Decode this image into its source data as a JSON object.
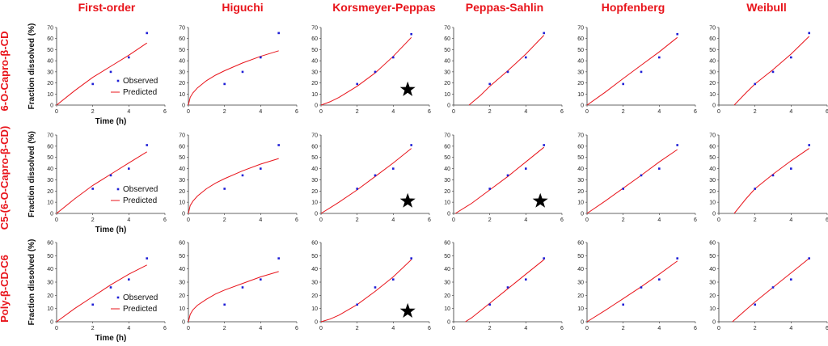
{
  "figure": {
    "column_titles": [
      "First-order",
      "Higuchi",
      "Korsmeyer-Peppas",
      "Peppas-Sahlin",
      "Hopfenberg",
      "Weibull"
    ],
    "row_titles": [
      "6-O-Capro-β-CD",
      "C5-(6-O-Capro-β-CD)",
      "Poly-β-CD-C6"
    ],
    "ylabel": "Fraction dissolved (%)",
    "xlabel": "Time (h)",
    "legend": {
      "observed": "Observed",
      "predicted": "Predicted"
    },
    "colors": {
      "title": "#e8141b",
      "observed": "#1f1fd6",
      "predicted": "#e8141b",
      "star": "#000000"
    }
  },
  "chart_data": [
    {
      "row": 0,
      "col": 0,
      "type": "scatter",
      "title": "First-order",
      "xlim": [
        0,
        6
      ],
      "ylim": [
        0,
        70
      ],
      "x_ticks": [
        0,
        2,
        4,
        6
      ],
      "y_ticks": [
        0,
        10,
        20,
        30,
        40,
        50,
        60,
        70
      ],
      "observed": {
        "x": [
          2,
          3,
          4,
          5
        ],
        "y": [
          19,
          30,
          43,
          65
        ]
      },
      "predicted": {
        "x": [
          0,
          1,
          2,
          3,
          4,
          5
        ],
        "y": [
          0,
          13,
          25,
          35,
          45,
          56
        ]
      },
      "legend": true,
      "ylabel": true,
      "xlabel": true,
      "star": false
    },
    {
      "row": 0,
      "col": 1,
      "type": "scatter",
      "title": "Higuchi",
      "xlim": [
        0,
        6
      ],
      "ylim": [
        0,
        70
      ],
      "x_ticks": [
        0,
        2,
        4,
        6
      ],
      "y_ticks": [
        0,
        10,
        20,
        30,
        40,
        50,
        60,
        70
      ],
      "observed": {
        "x": [
          2,
          3,
          4,
          5
        ],
        "y": [
          19,
          30,
          43,
          65
        ]
      },
      "predicted": {
        "x": [
          0,
          0.1,
          0.25,
          0.5,
          1,
          1.5,
          2,
          3,
          4,
          5
        ],
        "y": [
          0,
          7,
          11,
          15.5,
          22,
          27,
          31,
          38,
          44,
          49
        ]
      },
      "legend": false,
      "ylabel": false,
      "xlabel": false,
      "star": false
    },
    {
      "row": 0,
      "col": 2,
      "type": "scatter",
      "title": "Korsmeyer-Peppas",
      "xlim": [
        0,
        6
      ],
      "ylim": [
        0,
        70
      ],
      "x_ticks": [
        0,
        2,
        4,
        6
      ],
      "y_ticks": [
        0,
        10,
        20,
        30,
        40,
        50,
        60,
        70
      ],
      "observed": {
        "x": [
          2,
          3,
          4,
          5
        ],
        "y": [
          19,
          30,
          43,
          64
        ]
      },
      "predicted": {
        "x": [
          0,
          0.5,
          1,
          2,
          3,
          4,
          5
        ],
        "y": [
          0,
          3,
          7,
          17,
          29,
          44,
          61
        ]
      },
      "legend": false,
      "ylabel": false,
      "xlabel": false,
      "star": true,
      "star_pos": [
        4.8,
        14
      ]
    },
    {
      "row": 0,
      "col": 3,
      "type": "scatter",
      "title": "Peppas-Sahlin",
      "xlim": [
        0,
        6
      ],
      "ylim": [
        0,
        70
      ],
      "x_ticks": [
        0,
        2,
        4,
        6
      ],
      "y_ticks": [
        0,
        10,
        20,
        30,
        40,
        50,
        60,
        70
      ],
      "observed": {
        "x": [
          2,
          3,
          4,
          5
        ],
        "y": [
          19,
          30,
          43,
          65
        ]
      },
      "predicted": {
        "x": [
          0.85,
          1.5,
          2,
          3,
          4,
          5
        ],
        "y": [
          0,
          9,
          17,
          31,
          46,
          63
        ]
      },
      "legend": false,
      "ylabel": false,
      "xlabel": false,
      "star": false
    },
    {
      "row": 0,
      "col": 4,
      "type": "scatter",
      "title": "Hopfenberg",
      "xlim": [
        0,
        6
      ],
      "ylim": [
        0,
        70
      ],
      "x_ticks": [
        0,
        2,
        4,
        6
      ],
      "y_ticks": [
        0,
        10,
        20,
        30,
        40,
        50,
        60,
        70
      ],
      "observed": {
        "x": [
          2,
          3,
          4,
          5
        ],
        "y": [
          19,
          30,
          43,
          64
        ]
      },
      "predicted": {
        "x": [
          0,
          1,
          2,
          3,
          4,
          5
        ],
        "y": [
          0,
          11.5,
          24,
          36,
          48,
          61
        ]
      },
      "legend": false,
      "ylabel": false,
      "xlabel": false,
      "star": false
    },
    {
      "row": 0,
      "col": 5,
      "type": "scatter",
      "title": "Weibull",
      "xlim": [
        0,
        6
      ],
      "ylim": [
        0,
        70
      ],
      "x_ticks": [
        0,
        2,
        4,
        6
      ],
      "y_ticks": [
        0,
        10,
        20,
        30,
        40,
        50,
        60,
        70
      ],
      "observed": {
        "x": [
          2,
          3,
          4,
          5
        ],
        "y": [
          19,
          30,
          43,
          65
        ]
      },
      "predicted": {
        "x": [
          0.85,
          1.5,
          2,
          3,
          4,
          5
        ],
        "y": [
          0,
          11,
          19,
          32,
          46,
          62
        ]
      },
      "legend": false,
      "ylabel": false,
      "xlabel": false,
      "star": false
    },
    {
      "row": 1,
      "col": 0,
      "type": "scatter",
      "title": "First-order",
      "xlim": [
        0,
        6
      ],
      "ylim": [
        0,
        70
      ],
      "x_ticks": [
        0,
        2,
        4,
        6
      ],
      "y_ticks": [
        0,
        10,
        20,
        30,
        40,
        50,
        60,
        70
      ],
      "observed": {
        "x": [
          2,
          3,
          4,
          5
        ],
        "y": [
          22,
          34,
          40,
          61
        ]
      },
      "predicted": {
        "x": [
          0,
          1,
          2,
          3,
          4,
          5
        ],
        "y": [
          0,
          13,
          25,
          35,
          45,
          55
        ]
      },
      "legend": true,
      "ylabel": true,
      "xlabel": true,
      "star": false
    },
    {
      "row": 1,
      "col": 1,
      "type": "scatter",
      "title": "Higuchi",
      "xlim": [
        0,
        6
      ],
      "ylim": [
        0,
        70
      ],
      "x_ticks": [
        0,
        2,
        4,
        6
      ],
      "y_ticks": [
        0,
        10,
        20,
        30,
        40,
        50,
        60,
        70
      ],
      "observed": {
        "x": [
          2,
          3,
          4,
          5
        ],
        "y": [
          22,
          34,
          40,
          61
        ]
      },
      "predicted": {
        "x": [
          0,
          0.1,
          0.25,
          0.5,
          1,
          1.5,
          2,
          3,
          4,
          5
        ],
        "y": [
          0,
          7,
          11,
          15.5,
          22,
          27,
          31,
          38,
          44,
          49
        ]
      },
      "legend": false,
      "ylabel": false,
      "xlabel": false,
      "star": false
    },
    {
      "row": 1,
      "col": 2,
      "type": "scatter",
      "title": "Korsmeyer-Peppas",
      "xlim": [
        0,
        6
      ],
      "ylim": [
        0,
        70
      ],
      "x_ticks": [
        0,
        2,
        4,
        6
      ],
      "y_ticks": [
        0,
        10,
        20,
        30,
        40,
        50,
        60,
        70
      ],
      "observed": {
        "x": [
          2,
          3,
          4,
          5
        ],
        "y": [
          22,
          34,
          40,
          61
        ]
      },
      "predicted": {
        "x": [
          0,
          0.5,
          1,
          2,
          3,
          4,
          5
        ],
        "y": [
          0,
          5,
          10,
          21,
          33,
          45,
          58
        ]
      },
      "legend": false,
      "ylabel": false,
      "xlabel": false,
      "star": true,
      "star_pos": [
        4.8,
        11
      ]
    },
    {
      "row": 1,
      "col": 3,
      "type": "scatter",
      "title": "Peppas-Sahlin",
      "xlim": [
        0,
        6
      ],
      "ylim": [
        0,
        70
      ],
      "x_ticks": [
        0,
        2,
        4,
        6
      ],
      "y_ticks": [
        0,
        10,
        20,
        30,
        40,
        50,
        60,
        70
      ],
      "observed": {
        "x": [
          2,
          3,
          4,
          5
        ],
        "y": [
          22,
          34,
          40,
          61
        ]
      },
      "predicted": {
        "x": [
          0.1,
          1,
          2,
          3,
          4,
          5
        ],
        "y": [
          0,
          9,
          21,
          33,
          46,
          59
        ]
      },
      "legend": false,
      "ylabel": false,
      "xlabel": false,
      "star": true,
      "star_pos": [
        4.8,
        11
      ]
    },
    {
      "row": 1,
      "col": 4,
      "type": "scatter",
      "title": "Hopfenberg",
      "xlim": [
        0,
        6
      ],
      "ylim": [
        0,
        70
      ],
      "x_ticks": [
        0,
        2,
        4,
        6
      ],
      "y_ticks": [
        0,
        10,
        20,
        30,
        40,
        50,
        60,
        70
      ],
      "observed": {
        "x": [
          2,
          3,
          4,
          5
        ],
        "y": [
          22,
          34,
          40,
          61
        ]
      },
      "predicted": {
        "x": [
          0,
          1,
          2,
          3,
          4,
          5
        ],
        "y": [
          0,
          11,
          22.5,
          34,
          46,
          57
        ]
      },
      "legend": false,
      "ylabel": false,
      "xlabel": false,
      "star": false
    },
    {
      "row": 1,
      "col": 5,
      "type": "scatter",
      "title": "Weibull",
      "xlim": [
        0,
        6
      ],
      "ylim": [
        0,
        70
      ],
      "x_ticks": [
        0,
        2,
        4,
        6
      ],
      "y_ticks": [
        0,
        10,
        20,
        30,
        40,
        50,
        60,
        70
      ],
      "observed": {
        "x": [
          2,
          3,
          4,
          5
        ],
        "y": [
          22,
          34,
          40,
          61
        ]
      },
      "predicted": {
        "x": [
          0.85,
          1.5,
          2,
          3,
          4,
          5
        ],
        "y": [
          0,
          13,
          22,
          35,
          47,
          58
        ]
      },
      "legend": false,
      "ylabel": false,
      "xlabel": false,
      "star": false
    },
    {
      "row": 2,
      "col": 0,
      "type": "scatter",
      "title": "First-order",
      "xlim": [
        0,
        6
      ],
      "ylim": [
        0,
        60
      ],
      "x_ticks": [
        0,
        2,
        4,
        6
      ],
      "y_ticks": [
        0,
        10,
        20,
        30,
        40,
        50,
        60
      ],
      "observed": {
        "x": [
          2,
          3,
          4,
          5
        ],
        "y": [
          13,
          26,
          32,
          48
        ]
      },
      "predicted": {
        "x": [
          0,
          1,
          2,
          3,
          4,
          5
        ],
        "y": [
          0,
          10,
          19,
          28,
          36,
          43
        ]
      },
      "legend": true,
      "ylabel": true,
      "xlabel": true,
      "star": false
    },
    {
      "row": 2,
      "col": 1,
      "type": "scatter",
      "title": "Higuchi",
      "xlim": [
        0,
        6
      ],
      "ylim": [
        0,
        60
      ],
      "x_ticks": [
        0,
        2,
        4,
        6
      ],
      "y_ticks": [
        0,
        10,
        20,
        30,
        40,
        50,
        60
      ],
      "observed": {
        "x": [
          2,
          3,
          4,
          5
        ],
        "y": [
          13,
          26,
          32,
          48
        ]
      },
      "predicted": {
        "x": [
          0,
          0.1,
          0.25,
          0.5,
          1,
          1.5,
          2,
          3,
          4,
          5
        ],
        "y": [
          0,
          5.5,
          9,
          12.5,
          17,
          21,
          24,
          29,
          34,
          38
        ]
      },
      "legend": false,
      "ylabel": false,
      "xlabel": false,
      "star": false
    },
    {
      "row": 2,
      "col": 2,
      "type": "scatter",
      "title": "Korsmeyer-Peppas",
      "xlim": [
        0,
        6
      ],
      "ylim": [
        0,
        60
      ],
      "x_ticks": [
        0,
        2,
        4,
        6
      ],
      "y_ticks": [
        0,
        10,
        20,
        30,
        40,
        50,
        60
      ],
      "observed": {
        "x": [
          2,
          3,
          4,
          5
        ],
        "y": [
          13,
          26,
          32,
          48
        ]
      },
      "predicted": {
        "x": [
          0,
          0.5,
          1,
          2,
          3,
          4,
          5
        ],
        "y": [
          0,
          2,
          5,
          13,
          23,
          34,
          47
        ]
      },
      "legend": false,
      "ylabel": false,
      "xlabel": false,
      "star": true,
      "star_pos": [
        4.8,
        8
      ]
    },
    {
      "row": 2,
      "col": 3,
      "type": "scatter",
      "title": "Peppas-Sahlin",
      "xlim": [
        0,
        6
      ],
      "ylim": [
        0,
        60
      ],
      "x_ticks": [
        0,
        2,
        4,
        6
      ],
      "y_ticks": [
        0,
        10,
        20,
        30,
        40,
        50,
        60
      ],
      "observed": {
        "x": [
          2,
          3,
          4,
          5
        ],
        "y": [
          13,
          26,
          32,
          48
        ]
      },
      "predicted": {
        "x": [
          0.65,
          1,
          2,
          3,
          4,
          5
        ],
        "y": [
          0,
          3,
          14,
          25,
          36,
          47
        ]
      },
      "legend": false,
      "ylabel": false,
      "xlabel": false,
      "star": false
    },
    {
      "row": 2,
      "col": 4,
      "type": "scatter",
      "title": "Hopfenberg",
      "xlim": [
        0,
        6
      ],
      "ylim": [
        0,
        60
      ],
      "x_ticks": [
        0,
        2,
        4,
        6
      ],
      "y_ticks": [
        0,
        10,
        20,
        30,
        40,
        50,
        60
      ],
      "observed": {
        "x": [
          2,
          3,
          4,
          5
        ],
        "y": [
          13,
          26,
          32,
          48
        ]
      },
      "predicted": {
        "x": [
          0,
          1,
          2,
          3,
          4,
          5
        ],
        "y": [
          0,
          8.5,
          17.5,
          26.5,
          36,
          46
        ]
      },
      "legend": false,
      "ylabel": false,
      "xlabel": false,
      "star": false
    },
    {
      "row": 2,
      "col": 5,
      "type": "scatter",
      "title": "Weibull",
      "xlim": [
        0,
        6
      ],
      "ylim": [
        0,
        60
      ],
      "x_ticks": [
        0,
        2,
        4,
        6
      ],
      "y_ticks": [
        0,
        10,
        20,
        30,
        40,
        50,
        60
      ],
      "observed": {
        "x": [
          2,
          3,
          4,
          5
        ],
        "y": [
          13,
          26,
          32,
          48
        ]
      },
      "predicted": {
        "x": [
          0.75,
          1.5,
          2,
          3,
          4,
          5
        ],
        "y": [
          0,
          9,
          15,
          26,
          37,
          48
        ]
      },
      "legend": false,
      "ylabel": false,
      "xlabel": false,
      "star": false
    }
  ]
}
